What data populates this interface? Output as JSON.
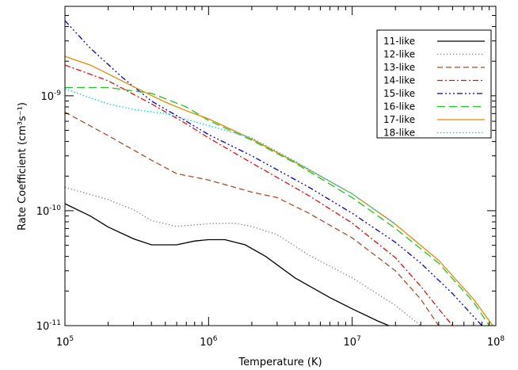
{
  "chart_data": {
    "type": "line",
    "title": "",
    "xlabel": "Temperature (K)",
    "ylabel": "Rate Coefficient (cm³s⁻¹)",
    "x_scale": "log",
    "y_scale": "log",
    "xlim": [
      100000,
      100000000
    ],
    "ylim": [
      1e-11,
      6e-09
    ],
    "x_ticks": [
      {
        "value": 100000,
        "mantissa": "10",
        "exp": "5"
      },
      {
        "value": 1000000,
        "mantissa": "10",
        "exp": "6"
      },
      {
        "value": 10000000,
        "mantissa": "10",
        "exp": "7"
      },
      {
        "value": 100000000,
        "mantissa": "10",
        "exp": "8"
      }
    ],
    "y_ticks": [
      {
        "value": 1e-11,
        "mantissa": "10",
        "exp": "-11"
      },
      {
        "value": 1e-10,
        "mantissa": "10",
        "exp": "-10"
      },
      {
        "value": 1e-09,
        "mantissa": "10",
        "exp": "-9"
      }
    ],
    "grid": false,
    "legend_position": "top-right",
    "series": [
      {
        "name": "11-like",
        "color": "#000000",
        "dash": "",
        "x": [
          100000,
          150000,
          200000,
          300000,
          400000,
          600000,
          800000,
          1000000,
          1300000,
          1800000,
          2500000,
          4000000,
          7000000,
          10000000,
          15000000,
          18000000
        ],
        "y": [
          1.15e-10,
          9e-11,
          7.2e-11,
          5.7e-11,
          5.05e-11,
          5.05e-11,
          5.45e-11,
          5.6e-11,
          5.6e-11,
          5.05e-11,
          4e-11,
          2.6e-11,
          1.75e-11,
          1.4e-11,
          1.1e-11,
          1e-11
        ]
      },
      {
        "name": "12-like",
        "color": "#777777",
        "dash": "1.2 2.8",
        "x": [
          100000,
          200000,
          300000,
          400000,
          600000,
          1000000,
          1500000,
          2000000,
          3000000,
          5000000,
          10000000,
          20000000,
          30000000
        ],
        "y": [
          1.6e-10,
          1.25e-10,
          1.02e-10,
          8.2e-11,
          7.3e-11,
          7.7e-11,
          7.8e-11,
          7.3e-11,
          6.2e-11,
          4.1e-11,
          2.6e-11,
          1.5e-11,
          1e-11
        ]
      },
      {
        "name": "13-like",
        "color": "#a0522d",
        "dash": "7 4",
        "x": [
          100000,
          200000,
          400000,
          600000,
          1000000,
          2000000,
          3000000,
          5000000,
          10000000,
          20000000,
          30000000,
          40000000
        ],
        "y": [
          7.2e-10,
          4.5e-10,
          2.75e-10,
          2.1e-10,
          1.85e-10,
          1.45e-10,
          1.3e-10,
          9.5e-11,
          5.8e-11,
          3e-11,
          1.7e-11,
          1e-11
        ]
      },
      {
        "name": "14-like",
        "color": "#e01010",
        "dash": "7 3 2 3",
        "x": [
          100000,
          200000,
          400000,
          700000,
          1000000,
          2000000,
          5000000,
          10000000,
          20000000,
          30000000,
          40000000,
          50000000
        ],
        "y": [
          1.85e-09,
          1.35e-09,
          8.5e-10,
          5.7e-10,
          4.3e-10,
          2.6e-10,
          1.35e-10,
          7.8e-11,
          3.9e-11,
          2.2e-11,
          1.4e-11,
          1e-11
        ]
      },
      {
        "name": "15-like",
        "color": "#0000cc",
        "dash": "7 3 2 3 2 3 2 3",
        "x": [
          100000,
          150000,
          250000,
          400000,
          700000,
          1000000,
          2000000,
          5000000,
          10000000,
          20000000,
          30000000,
          50000000,
          70000000,
          80000000
        ],
        "y": [
          4.5e-09,
          2.6e-09,
          1.45e-09,
          9e-10,
          6e-10,
          4.6e-10,
          3e-10,
          1.6e-10,
          9.5e-11,
          5.3e-11,
          3.5e-11,
          1.9e-11,
          1.2e-11,
          1e-11
        ]
      },
      {
        "name": "16-like",
        "color": "#22c422",
        "dash": "10 5",
        "x": [
          100000,
          200000,
          400000,
          700000,
          1000000,
          2000000,
          4000000,
          10000000,
          20000000,
          40000000,
          70000000,
          90000000
        ],
        "y": [
          1.18e-09,
          1.18e-09,
          1.05e-09,
          8e-10,
          6.1e-10,
          4.1e-10,
          2.6e-10,
          1.3e-10,
          7e-11,
          3.5e-11,
          1.6e-11,
          1e-11
        ]
      },
      {
        "name": "17-like",
        "color": "#e08c00",
        "dash": "",
        "x": [
          100000,
          150000,
          200000,
          300000,
          500000,
          700000,
          1000000,
          2000000,
          4000000,
          10000000,
          20000000,
          40000000,
          70000000,
          95000000
        ],
        "y": [
          2.2e-09,
          1.85e-09,
          1.55e-09,
          1.2e-09,
          8.8e-10,
          7.4e-10,
          6.3e-10,
          4.2e-10,
          2.65e-10,
          1.4e-10,
          7.6e-11,
          3.7e-11,
          1.7e-11,
          1e-11
        ]
      },
      {
        "name": "18-like",
        "color": "#00ccff",
        "dash": "1.5 2.5",
        "x": [
          100000,
          150000,
          200000,
          300000,
          500000,
          1000000,
          2000000,
          4000000,
          10000000,
          20000000
        ],
        "y": [
          1.15e-09,
          9.6e-10,
          8.5e-10,
          7.6e-10,
          7e-10,
          5.5e-10,
          4.3e-10,
          2.7e-10,
          1.4e-10,
          7.7e-11
        ]
      }
    ]
  }
}
